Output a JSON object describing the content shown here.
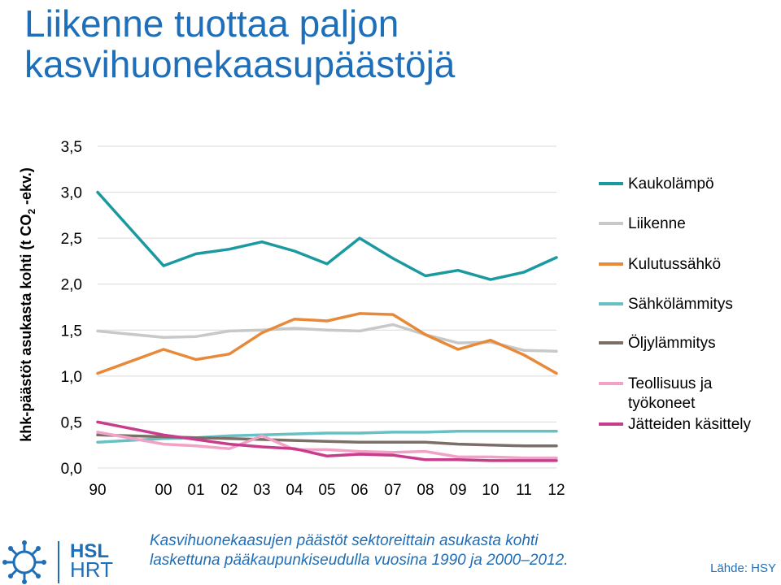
{
  "slide": {
    "title_line1": "Liikenne tuottaa paljon",
    "title_line2": "kasvihuonekaasupäästöjä",
    "caption_line1": "Kasvihuonekaasujen päästöt sektoreittain asukasta kohti",
    "caption_line2": "laskettuna pääkaupunkiseudulla vuosina 1990 ja 2000–2012.",
    "source": "Lähde: HSY",
    "logo_top": "HSL",
    "logo_bottom": "HRT",
    "colors": {
      "title": "#1f6eb8",
      "grid": "#d9d9d9"
    }
  },
  "chart_data": {
    "type": "line",
    "title": "",
    "xlabel": "",
    "ylabel": "khk-päästöt asukasta kohti (t CO",
    "ylabel_sub": "2",
    "ylabel_tail": " -ekv.)",
    "x": [
      "90",
      "00",
      "01",
      "02",
      "03",
      "04",
      "05",
      "06",
      "07",
      "08",
      "09",
      "10",
      "11",
      "12"
    ],
    "ylim": [
      0,
      3.5
    ],
    "yticks": [
      "0,0",
      "0,5",
      "1,0",
      "1,5",
      "2,0",
      "2,5",
      "3,0",
      "3,5"
    ],
    "grid": true,
    "legend": "right",
    "series": [
      {
        "name": "Kaukolämpö",
        "color": "#1a9aa0",
        "values": [
          3.0,
          2.2,
          2.33,
          2.38,
          2.46,
          2.36,
          2.22,
          2.5,
          2.28,
          2.09,
          2.15,
          2.05,
          2.13,
          2.29
        ]
      },
      {
        "name": "Liikenne",
        "color": "#c8c8c8",
        "values": [
          1.49,
          1.42,
          1.43,
          1.49,
          1.5,
          1.52,
          1.5,
          1.49,
          1.56,
          1.45,
          1.36,
          1.37,
          1.28,
          1.27
        ]
      },
      {
        "name": "Kulutussähkö",
        "color": "#e8893a",
        "values": [
          1.03,
          1.29,
          1.18,
          1.24,
          1.47,
          1.62,
          1.6,
          1.68,
          1.67,
          1.45,
          1.29,
          1.39,
          1.23,
          1.03
        ]
      },
      {
        "name": "Sähkölämmitys",
        "color": "#66c0c4",
        "values": [
          0.28,
          0.32,
          0.33,
          0.35,
          0.36,
          0.37,
          0.38,
          0.38,
          0.39,
          0.39,
          0.4,
          0.4,
          0.4,
          0.4
        ]
      },
      {
        "name": "Öljylämmitys",
        "color": "#7a6e66",
        "values": [
          0.36,
          0.34,
          0.33,
          0.32,
          0.31,
          0.3,
          0.29,
          0.28,
          0.28,
          0.28,
          0.26,
          0.25,
          0.24,
          0.24
        ]
      },
      {
        "name": "Teollisuus ja\ntyökoneet",
        "color": "#f2a1c7",
        "values": [
          0.39,
          0.26,
          0.24,
          0.21,
          0.35,
          0.2,
          0.2,
          0.18,
          0.17,
          0.18,
          0.12,
          0.12,
          0.11,
          0.11
        ]
      },
      {
        "name": "Jätteiden käsittely",
        "color": "#c83c8c",
        "values": [
          0.5,
          0.36,
          0.31,
          0.26,
          0.23,
          0.21,
          0.13,
          0.15,
          0.14,
          0.09,
          0.09,
          0.08,
          0.08,
          0.08
        ]
      }
    ]
  }
}
